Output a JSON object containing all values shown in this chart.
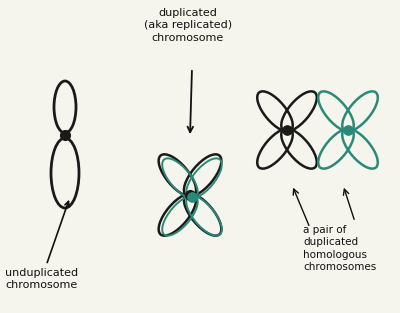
{
  "bg_color": "#f5f5ee",
  "text_color": "#111111",
  "chromosome_color_dark": "#1a1a1a",
  "chromosome_color_teal": "#2a8a78",
  "centromere_color": "#111111",
  "label_unduplicated": "unduplicated\nchromosome",
  "label_duplicated": "duplicated\n(aka replicated)\nchromosome",
  "label_pair": "a pair of\nduplicated\nhomologous\nchromosomes",
  "font_size_labels": 8.0
}
